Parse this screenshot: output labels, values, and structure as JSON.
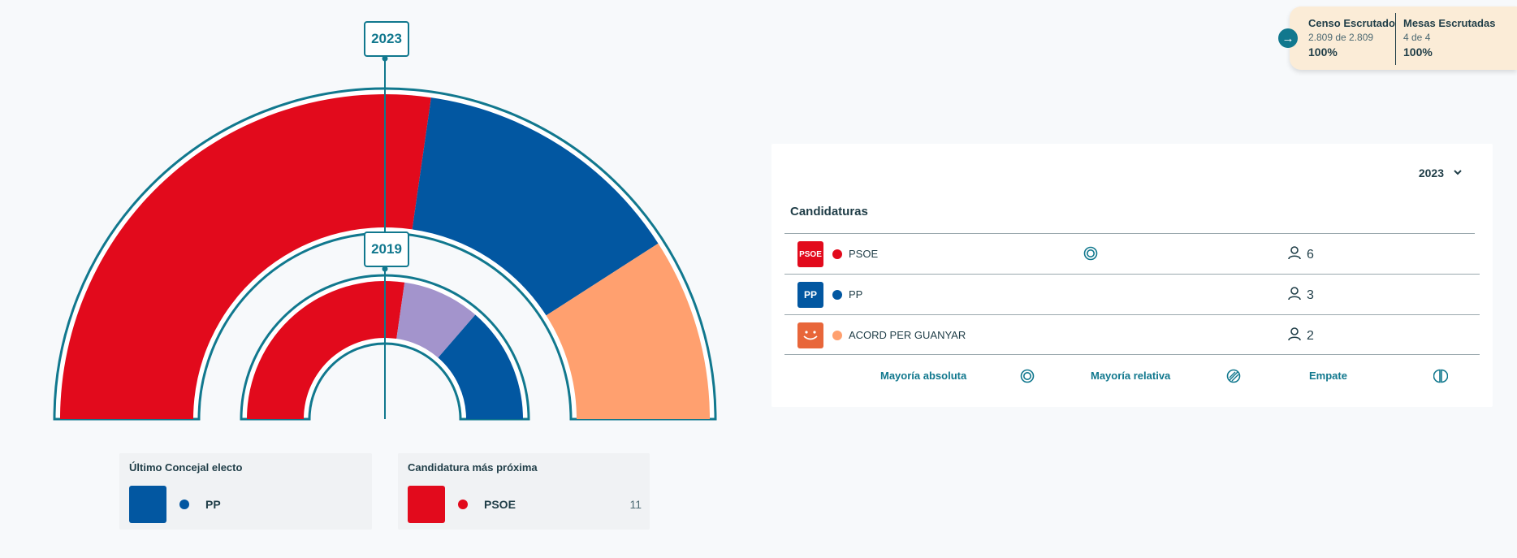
{
  "chart_data": {
    "type": "hemicycle",
    "rings": [
      {
        "year": "2023",
        "segments": [
          {
            "party": "PSOE",
            "seats": 6,
            "color": "#e20a1c"
          },
          {
            "party": "PP",
            "seats": 3,
            "color": "#0257a1"
          },
          {
            "party": "ACORD PER GUANYAR",
            "seats": 2,
            "color": "#ffa06f"
          }
        ]
      },
      {
        "year": "2019",
        "segments": [
          {
            "party": "PSOE",
            "value": 6,
            "color": "#e20a1c"
          },
          {
            "party": "",
            "value": 2,
            "color": "#a394cc"
          },
          {
            "party": "PP",
            "value": 3,
            "color": "#0257a1"
          }
        ]
      }
    ]
  },
  "years": {
    "outer": "2023",
    "inner": "2019"
  },
  "ultimo_concejal": {
    "title": "Último Concejal electo",
    "party": "PP",
    "color": "#0257a1"
  },
  "candidatura_proxima": {
    "title": "Candidatura más próxima",
    "party": "PSOE",
    "color": "#e20a1c",
    "count": "11"
  },
  "status": {
    "censo": {
      "title": "Censo Escrutado",
      "sub": "2.809 de 2.809",
      "pct": "100%"
    },
    "mesas": {
      "title": "Mesas Escrutadas",
      "sub": "4 de 4",
      "pct": "100%"
    }
  },
  "panel": {
    "year_selected": "2023",
    "title": "Candidaturas",
    "rows": [
      {
        "name": "PSOE",
        "logo_text": "PSOE",
        "color": "#e20a1c",
        "seats": "6",
        "majority_icon": "absolute-majority-icon"
      },
      {
        "name": "PP",
        "logo_text": "PP",
        "color": "#0257a1",
        "seats": "3"
      },
      {
        "name": "ACORD PER GUANYAR",
        "logo_text": "",
        "color": "#ffa06f",
        "seats": "2"
      }
    ],
    "legend": {
      "absolute": "Mayoría absoluta",
      "relative": "Mayoría relativa",
      "tie": "Empate"
    }
  }
}
